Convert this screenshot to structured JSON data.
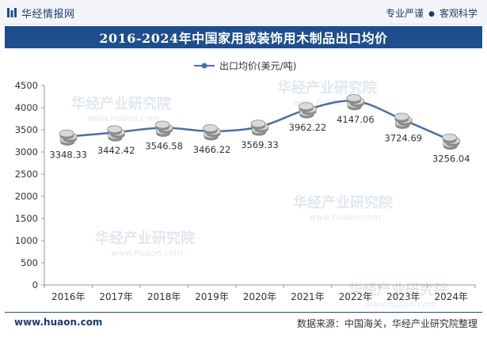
{
  "header": {
    "brand": "华经情报网",
    "tag_1": "专业严谨",
    "tag_2": "客观科学"
  },
  "footer": {
    "website": "www.huaon.com",
    "source": "数据来源：中国海关，华经产业研究院整理"
  },
  "watermark": {
    "text": "华经产业研究院",
    "sub": "www.huaon.com"
  },
  "colors": {
    "brand_blue": "#1f4e8c",
    "line": "#4a6fa5",
    "axis": "#999999"
  },
  "chart_data": {
    "type": "line",
    "title": "2016-2024年中国家用或装饰用木制品出口均价",
    "categories": [
      "2016年",
      "2017年",
      "2018年",
      "2019年",
      "2020年",
      "2021年",
      "2022年",
      "2023年",
      "2024年"
    ],
    "series": [
      {
        "name": "出口均价(美元/吨)",
        "values": [
          3348.33,
          3442.42,
          3546.58,
          3466.22,
          3569.33,
          3962.22,
          4147.06,
          3724.69,
          3256.04
        ],
        "labels": [
          "3348.33",
          "3442.42",
          "3546.58",
          "3466.22",
          "3569.33",
          "3962.22",
          "4147.06",
          "3724.69",
          "3256.04"
        ]
      }
    ],
    "xlabel": "",
    "ylabel": "",
    "ylim": [
      0,
      4500
    ],
    "yticks": [
      0,
      500,
      1000,
      1500,
      2000,
      2500,
      3000,
      3500,
      4000,
      4500
    ],
    "ytick_labels": [
      "0",
      "500",
      "1000",
      "1500",
      "2000",
      "2500",
      "3000",
      "3500",
      "4000",
      "4500"
    ],
    "legend_position": "top-center",
    "grid": false
  }
}
